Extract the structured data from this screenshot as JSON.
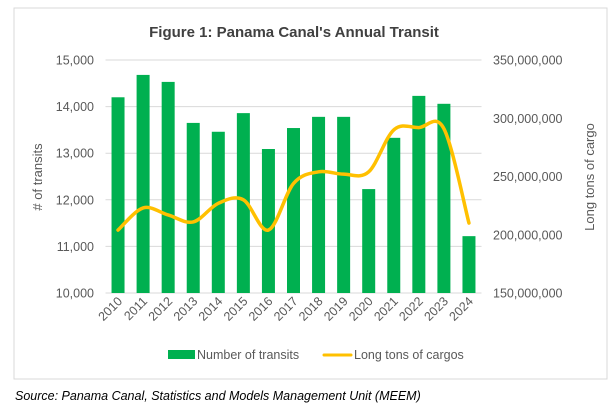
{
  "source_note": "Source: Panama Canal, Statistics and Models Management Unit (MEEM)",
  "chart_data": {
    "type": "bar+line",
    "title": "Figure 1: Panama Canal's Annual Transit",
    "categories": [
      "2010",
      "2011",
      "2012",
      "2013",
      "2014",
      "2015",
      "2016",
      "2017",
      "2018",
      "2019",
      "2020",
      "2021",
      "2022",
      "2023",
      "2024"
    ],
    "series": [
      {
        "name": "Number of transits",
        "type": "bar",
        "axis": "left",
        "color": "#00B050",
        "values": [
          14200,
          14680,
          14530,
          13650,
          13460,
          13860,
          13090,
          13540,
          13780,
          13780,
          12230,
          13330,
          14230,
          14060,
          11220
        ]
      },
      {
        "name": "Long tons of cargos",
        "type": "line",
        "smooth": true,
        "axis": "right",
        "color": "#FFC000",
        "values": [
          204000000,
          223000000,
          217000000,
          211000000,
          227000000,
          230000000,
          204000000,
          244000000,
          254000000,
          252000000,
          254000000,
          290000000,
          292000000,
          291000000,
          210000000
        ]
      }
    ],
    "ylabel": "# of transits",
    "ylim": [
      10000,
      15000
    ],
    "yticks": [
      "10,000",
      "11,000",
      "12,000",
      "13,000",
      "14,000",
      "15,000"
    ],
    "y2label": "Long tons of cargo",
    "y2lim": [
      150000000,
      350000000
    ],
    "y2ticks": [
      "150,000,000",
      "200,000,000",
      "250,000,000",
      "300,000,000",
      "350,000,000"
    ],
    "grid": true,
    "legend": "bottom"
  }
}
